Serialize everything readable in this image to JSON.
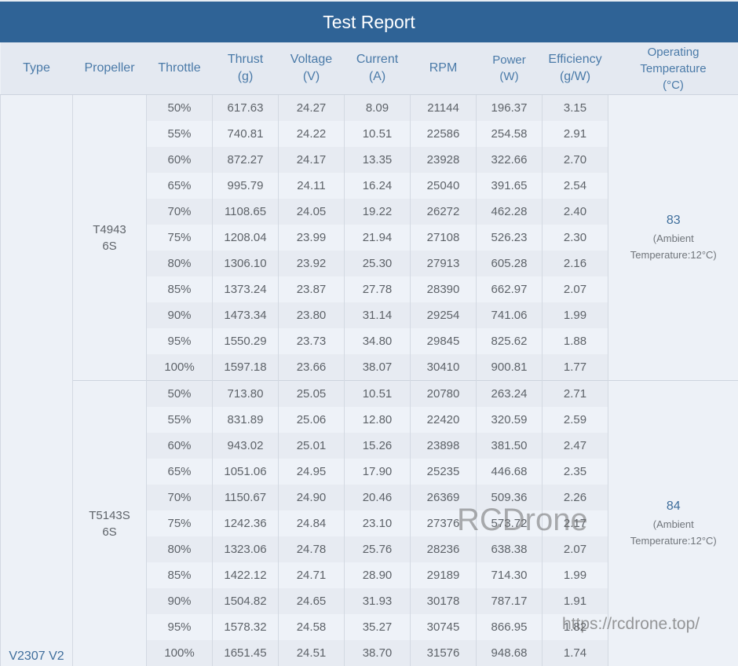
{
  "title": "Test Report",
  "headers": [
    {
      "line1": "Type",
      "line2": ""
    },
    {
      "line1": "Propeller",
      "line2": ""
    },
    {
      "line1": "Throttle",
      "line2": ""
    },
    {
      "line1": "Thrust",
      "line2": "(g)"
    },
    {
      "line1": "Voltage",
      "line2": "(V)"
    },
    {
      "line1": "Current",
      "line2": "(A)"
    },
    {
      "line1": "RPM",
      "line2": ""
    },
    {
      "line1": "Power",
      "line2": "(W)"
    },
    {
      "line1": "Efficiency",
      "line2": "(g/W)"
    },
    {
      "line1": "Operating",
      "line2": "Temperature",
      "line3": "(°C)"
    }
  ],
  "type": "V2307 V2",
  "groups": [
    {
      "propeller_line1": "T4943",
      "propeller_line2": "6S",
      "temperature": "83",
      "ambient_line1": "(Ambient",
      "ambient_line2": "Temperature:12°C)",
      "rows": [
        {
          "throttle": "50%",
          "thrust": "617.63",
          "voltage": "24.27",
          "current": "8.09",
          "rpm": "21144",
          "power": "196.37",
          "efficiency": "3.15"
        },
        {
          "throttle": "55%",
          "thrust": "740.81",
          "voltage": "24.22",
          "current": "10.51",
          "rpm": "22586",
          "power": "254.58",
          "efficiency": "2.91"
        },
        {
          "throttle": "60%",
          "thrust": "872.27",
          "voltage": "24.17",
          "current": "13.35",
          "rpm": "23928",
          "power": "322.66",
          "efficiency": "2.70"
        },
        {
          "throttle": "65%",
          "thrust": "995.79",
          "voltage": "24.11",
          "current": "16.24",
          "rpm": "25040",
          "power": "391.65",
          "efficiency": "2.54"
        },
        {
          "throttle": "70%",
          "thrust": "1108.65",
          "voltage": "24.05",
          "current": "19.22",
          "rpm": "26272",
          "power": "462.28",
          "efficiency": "2.40"
        },
        {
          "throttle": "75%",
          "thrust": "1208.04",
          "voltage": "23.99",
          "current": "21.94",
          "rpm": "27108",
          "power": "526.23",
          "efficiency": "2.30"
        },
        {
          "throttle": "80%",
          "thrust": "1306.10",
          "voltage": "23.92",
          "current": "25.30",
          "rpm": "27913",
          "power": "605.28",
          "efficiency": "2.16"
        },
        {
          "throttle": "85%",
          "thrust": "1373.24",
          "voltage": "23.87",
          "current": "27.78",
          "rpm": "28390",
          "power": "662.97",
          "efficiency": "2.07"
        },
        {
          "throttle": "90%",
          "thrust": "1473.34",
          "voltage": "23.80",
          "current": "31.14",
          "rpm": "29254",
          "power": "741.06",
          "efficiency": "1.99"
        },
        {
          "throttle": "95%",
          "thrust": "1550.29",
          "voltage": "23.73",
          "current": "34.80",
          "rpm": "29845",
          "power": "825.62",
          "efficiency": "1.88"
        },
        {
          "throttle": "100%",
          "thrust": "1597.18",
          "voltage": "23.66",
          "current": "38.07",
          "rpm": "30410",
          "power": "900.81",
          "efficiency": "1.77"
        }
      ]
    },
    {
      "propeller_line1": "T5143S",
      "propeller_line2": "6S",
      "temperature": "84",
      "ambient_line1": "(Ambient",
      "ambient_line2": "Temperature:12°C)",
      "rows": [
        {
          "throttle": "50%",
          "thrust": "713.80",
          "voltage": "25.05",
          "current": "10.51",
          "rpm": "20780",
          "power": "263.24",
          "efficiency": "2.71"
        },
        {
          "throttle": "55%",
          "thrust": "831.89",
          "voltage": "25.06",
          "current": "12.80",
          "rpm": "22420",
          "power": "320.59",
          "efficiency": "2.59"
        },
        {
          "throttle": "60%",
          "thrust": "943.02",
          "voltage": "25.01",
          "current": "15.26",
          "rpm": "23898",
          "power": "381.50",
          "efficiency": "2.47"
        },
        {
          "throttle": "65%",
          "thrust": "1051.06",
          "voltage": "24.95",
          "current": "17.90",
          "rpm": "25235",
          "power": "446.68",
          "efficiency": "2.35"
        },
        {
          "throttle": "70%",
          "thrust": "1150.67",
          "voltage": "24.90",
          "current": "20.46",
          "rpm": "26369",
          "power": "509.36",
          "efficiency": "2.26"
        },
        {
          "throttle": "75%",
          "thrust": "1242.36",
          "voltage": "24.84",
          "current": "23.10",
          "rpm": "27376",
          "power": "573.72",
          "efficiency": "2.17"
        },
        {
          "throttle": "80%",
          "thrust": "1323.06",
          "voltage": "24.78",
          "current": "25.76",
          "rpm": "28236",
          "power": "638.38",
          "efficiency": "2.07"
        },
        {
          "throttle": "85%",
          "thrust": "1422.12",
          "voltage": "24.71",
          "current": "28.90",
          "rpm": "29189",
          "power": "714.30",
          "efficiency": "1.99"
        },
        {
          "throttle": "90%",
          "thrust": "1504.82",
          "voltage": "24.65",
          "current": "31.93",
          "rpm": "30178",
          "power": "787.17",
          "efficiency": "1.91"
        },
        {
          "throttle": "95%",
          "thrust": "1578.32",
          "voltage": "24.58",
          "current": "35.27",
          "rpm": "30745",
          "power": "866.95",
          "efficiency": "1.82"
        },
        {
          "throttle": "100%",
          "thrust": "1651.45",
          "voltage": "24.51",
          "current": "38.70",
          "rpm": "31576",
          "power": "948.68",
          "efficiency": "1.74"
        }
      ]
    }
  ],
  "watermark": "RCDrone",
  "watermark_url": "https://rcdrone.top/",
  "colors": {
    "title_bg": "#2f6396",
    "header_bg": "#e4e9f1",
    "header_text": "#4a7aa8",
    "body_bg": "#edf1f7",
    "stripe": "#e7ebf2"
  }
}
